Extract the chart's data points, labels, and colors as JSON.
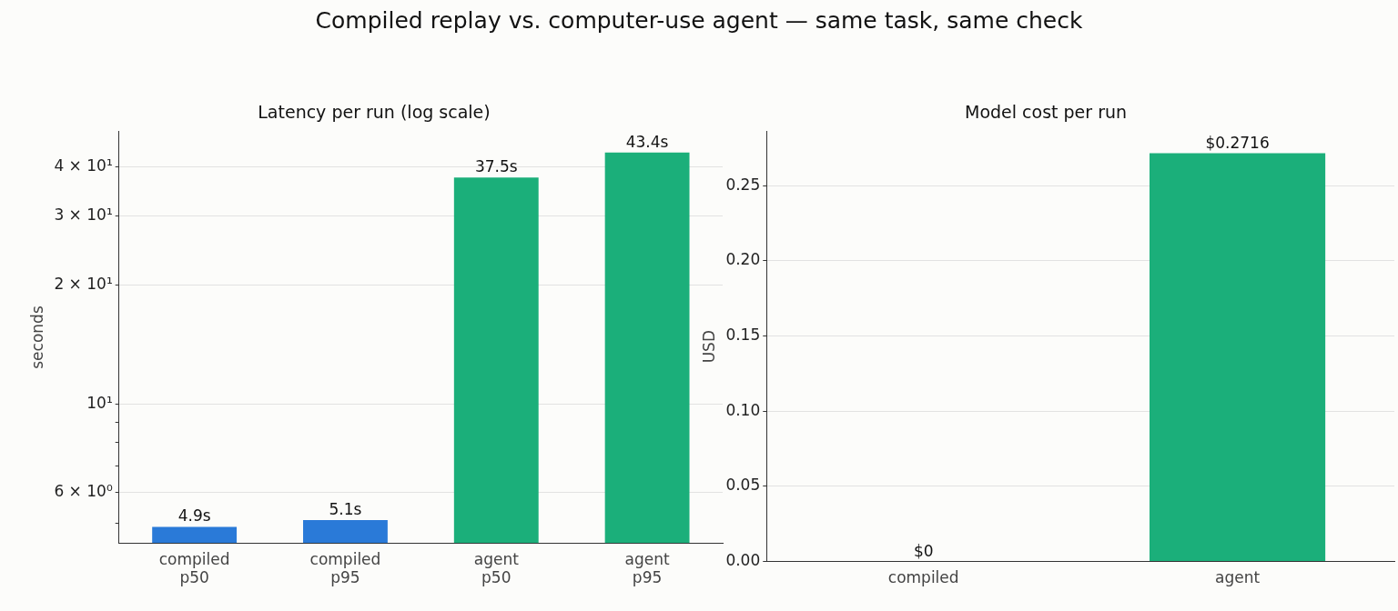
{
  "chart_data": [
    {
      "type": "other",
      "title": "Compiled replay vs. computer-use agent — same task, same check"
    },
    {
      "type": "bar",
      "title": "Latency per run (log scale)",
      "ylabel": "seconds",
      "log": "y",
      "grid": "y",
      "categories": [
        "compiled\np50",
        "compiled\np95",
        "agent\np50",
        "agent\np95"
      ],
      "values": [
        4.9,
        5.1,
        37.5,
        43.4
      ],
      "colors": [
        "#2a7ad8",
        "#2a7ad8",
        "#1baf7a",
        "#1baf7a"
      ],
      "value_labels": [
        "4.9s",
        "5.1s",
        "37.5s",
        "43.4s"
      ],
      "ylim": [
        4.46,
        49
      ],
      "yticks": [
        {
          "value": 5,
          "label": null
        },
        {
          "value": 6,
          "label": "6 × 10⁰"
        },
        {
          "value": 7,
          "label": null
        },
        {
          "value": 8,
          "label": null
        },
        {
          "value": 9,
          "label": null
        },
        {
          "value": 10,
          "label": "10¹"
        },
        {
          "value": 20,
          "label": "2 × 10¹"
        },
        {
          "value": 30,
          "label": "3 × 10¹"
        },
        {
          "value": 40,
          "label": "4 × 10¹"
        }
      ]
    },
    {
      "type": "bar",
      "title": "Model cost per run",
      "ylabel": "USD",
      "grid": "y",
      "categories": [
        "compiled",
        "agent"
      ],
      "values": [
        0,
        0.2716
      ],
      "colors": [
        "#2a7ad8",
        "#1baf7a"
      ],
      "value_labels": [
        "$0",
        "$0.2716"
      ],
      "ylim": [
        0,
        0.286
      ],
      "yticks": [
        {
          "value": 0,
          "label": "0.00"
        },
        {
          "value": 0.05,
          "label": "0.05"
        },
        {
          "value": 0.1,
          "label": "0.10"
        },
        {
          "value": 0.15,
          "label": "0.15"
        },
        {
          "value": 0.2,
          "label": "0.20"
        },
        {
          "value": 0.25,
          "label": "0.25"
        }
      ]
    }
  ]
}
